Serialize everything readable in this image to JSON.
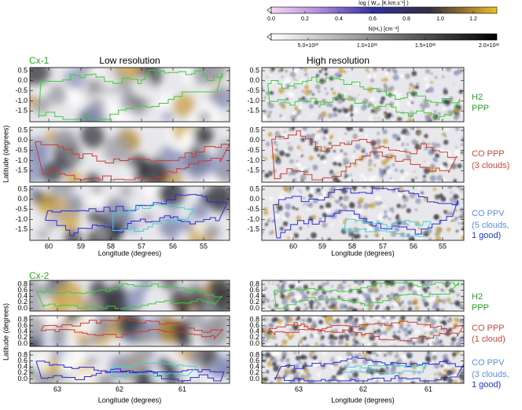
{
  "colorbars": [
    {
      "label": "log ( W꜀ₒ [K.km.s⁻¹] )",
      "ticks": [
        "0.0",
        "0.2",
        "0.4",
        "0.6",
        "0.8",
        "1.0",
        "1.2"
      ]
    },
    {
      "label": "N(H₂) [cm⁻²]",
      "ticks": [
        "5.0×10²⁰",
        "1.0×10²¹",
        "1.5×10²¹",
        "2.0×10²¹"
      ]
    }
  ],
  "sections": [
    {
      "name": "Cx-1",
      "columns": [
        "Low resolution",
        "High resolution"
      ],
      "yticks": [
        "0.5",
        "0.0",
        "-0.5",
        "-1.0",
        "-1.5"
      ],
      "xticks": [
        "60",
        "59",
        "58",
        "57",
        "56",
        "55"
      ],
      "xlabel": "Longitude (degrees)",
      "ylabel": "Latitude (degrees)",
      "annotations": [
        [
          "H2",
          "PPP"
        ],
        [
          "CO PPP",
          "(3 clouds)"
        ],
        [
          "CO PPV",
          "(5 clouds,",
          "1 good)"
        ]
      ]
    },
    {
      "name": "Cx-2",
      "yticks": [
        "0.8",
        "0.6",
        "0.4",
        "0.2",
        "0.0"
      ],
      "xticks": [
        "63",
        "62",
        "61"
      ],
      "xlabel": "Longitude (degrees)",
      "ylabel": "Latitude (degrees)",
      "annotations": [
        [
          "H2",
          "PPP"
        ],
        [
          "CO PPP",
          "(1 cloud)"
        ],
        [
          "CO PPV",
          "(3 clouds,",
          "1 good)"
        ]
      ]
    }
  ]
}
